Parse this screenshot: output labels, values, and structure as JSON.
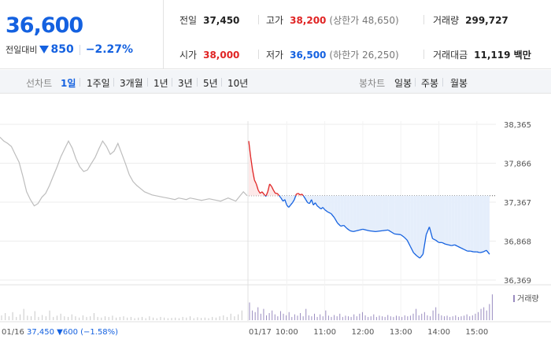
{
  "header": {
    "price": "36,600",
    "change_label": "전일대비",
    "change_amount": "850",
    "change_percent": "−2.27%",
    "stats": {
      "prev_close_label": "전일",
      "prev_close": "37,450",
      "high_label": "고가",
      "high": "38,200",
      "upper_limit": "(상한가 48,650)",
      "volume_label": "거래량",
      "volume": "299,727",
      "open_label": "시가",
      "open": "38,000",
      "low_label": "저가",
      "low": "36,500",
      "lower_limit": "(하한가 26,250)",
      "trade_value_label": "거래대금",
      "trade_value": "11,119 백만"
    }
  },
  "period_bar": {
    "line_chart_label": "선차트",
    "line_periods": [
      "1일",
      "1주일",
      "3개월",
      "1년",
      "3년",
      "5년",
      "10년"
    ],
    "active_period": "1일",
    "candle_chart_label": "봉차트",
    "candle_periods": [
      "일봉",
      "주봉",
      "월봉"
    ]
  },
  "colors": {
    "up": "#e02424",
    "down": "#1461e0",
    "prev_day_line": "#bdbdbd",
    "volume_prev": "#c8c8c8",
    "volume_today": "#9a8cc0"
  },
  "chart_data": {
    "type": "line",
    "y_ticks": [
      "38,365",
      "37,866",
      "37,367",
      "36,868",
      "36,369"
    ],
    "ylim": [
      36369,
      38365
    ],
    "reference_price": 37450,
    "x_labels": [
      "01/17",
      "10:00",
      "11:00",
      "12:00",
      "13:00",
      "14:00",
      "15:00"
    ],
    "prev_day_footer": {
      "date": "01/16",
      "close": "37,450",
      "change": "600",
      "pct": "(−1.58%)"
    },
    "volume_legend": "거래량",
    "series": [
      {
        "name": "01/16",
        "x": [
          "09:00",
          "09:06",
          "09:12",
          "09:18",
          "09:24",
          "09:30",
          "09:36",
          "09:42",
          "09:48",
          "09:54",
          "10:00",
          "10:06",
          "10:12",
          "10:18",
          "10:24",
          "10:30",
          "10:36",
          "10:42",
          "10:48",
          "10:54",
          "11:00",
          "11:06",
          "11:12",
          "11:18",
          "11:24",
          "11:30",
          "11:36",
          "11:42",
          "11:48",
          "11:54",
          "12:00",
          "12:06",
          "12:12",
          "12:18",
          "12:24",
          "12:30",
          "12:36",
          "12:42",
          "12:48",
          "12:54",
          "13:00",
          "13:06",
          "13:12",
          "13:18",
          "13:24",
          "13:30",
          "13:36",
          "13:42",
          "13:48",
          "13:54",
          "14:00",
          "14:06",
          "14:12",
          "14:18",
          "14:24",
          "14:30",
          "14:36",
          "14:42",
          "14:48",
          "14:54",
          "15:00",
          "15:06",
          "15:12",
          "15:18",
          "15:24",
          "15:30"
        ],
        "values": [
          38200,
          38150,
          38120,
          38080,
          37980,
          37880,
          37700,
          37500,
          37400,
          37320,
          37350,
          37430,
          37480,
          37580,
          37700,
          37820,
          37950,
          38050,
          38150,
          38060,
          37920,
          37820,
          37760,
          37780,
          37860,
          37940,
          38050,
          38150,
          38080,
          37980,
          38020,
          38120,
          37990,
          37860,
          37720,
          37630,
          37580,
          37540,
          37500,
          37480,
          37460,
          37450,
          37440,
          37430,
          37420,
          37410,
          37400,
          37420,
          37410,
          37400,
          37420,
          37410,
          37400,
          37390,
          37400,
          37410,
          37400,
          37390,
          37380,
          37400,
          37420,
          37400,
          37380,
          37440,
          37500,
          37450
        ]
      },
      {
        "name": "01/17",
        "x": [
          "09:00",
          "09:03",
          "09:06",
          "09:09",
          "09:12",
          "09:15",
          "09:18",
          "09:21",
          "09:24",
          "09:27",
          "09:30",
          "09:33",
          "09:36",
          "09:39",
          "09:42",
          "09:45",
          "09:48",
          "09:51",
          "09:54",
          "09:57",
          "10:00",
          "10:03",
          "10:06",
          "10:09",
          "10:12",
          "10:15",
          "10:18",
          "10:21",
          "10:24",
          "10:27",
          "10:30",
          "10:33",
          "10:36",
          "10:39",
          "10:42",
          "10:45",
          "10:48",
          "10:51",
          "10:54",
          "10:57",
          "11:00",
          "11:05",
          "11:10",
          "11:15",
          "11:20",
          "11:25",
          "11:30",
          "11:35",
          "11:40",
          "11:45",
          "11:50",
          "11:55",
          "12:00",
          "12:10",
          "12:20",
          "12:30",
          "12:40",
          "12:50",
          "13:00",
          "13:05",
          "13:10",
          "13:15",
          "13:20",
          "13:25",
          "13:30",
          "13:35",
          "13:40",
          "13:45",
          "13:50",
          "13:55",
          "14:00",
          "14:05",
          "14:10",
          "14:15",
          "14:20",
          "14:25",
          "14:30",
          "14:35",
          "14:40",
          "14:45",
          "14:50",
          "14:55",
          "15:00",
          "15:05",
          "15:10",
          "15:15",
          "15:20"
        ],
        "values": [
          38150,
          37950,
          37780,
          37650,
          37600,
          37520,
          37480,
          37500,
          37470,
          37440,
          37500,
          37600,
          37570,
          37520,
          37480,
          37480,
          37450,
          37420,
          37380,
          37400,
          37330,
          37300,
          37330,
          37360,
          37400,
          37470,
          37480,
          37460,
          37470,
          37440,
          37400,
          37360,
          37350,
          37400,
          37330,
          37360,
          37320,
          37300,
          37280,
          37300,
          37270,
          37240,
          37220,
          37170,
          37100,
          37060,
          37070,
          37030,
          37000,
          36990,
          37000,
          37010,
          37020,
          37000,
          36990,
          37000,
          37010,
          36960,
          36950,
          36920,
          36880,
          36800,
          36720,
          36680,
          36650,
          36700,
          36950,
          37050,
          36900,
          36880,
          36850,
          36850,
          36830,
          36820,
          36810,
          36820,
          36800,
          36780,
          36760,
          36740,
          36740,
          36730,
          36730,
          36720,
          36730,
          36750,
          36700
        ]
      }
    ],
    "volume": {
      "name": "거래량",
      "prev_day_relative": [
        0.15,
        0.22,
        0.12,
        0.25,
        0.1,
        0.18,
        0.35,
        0.14,
        0.12,
        0.28,
        0.1,
        0.16,
        0.12,
        0.3,
        0.1,
        0.14,
        0.2,
        0.12,
        0.1,
        0.18,
        0.12,
        0.08,
        0.15,
        0.1,
        0.12,
        0.22,
        0.1,
        0.08,
        0.12,
        0.1,
        0.14,
        0.08,
        0.1,
        0.12,
        0.08,
        0.1,
        0.06,
        0.08,
        0.1,
        0.06,
        0.12,
        0.08,
        0.06,
        0.1,
        0.08,
        0.06,
        0.07,
        0.08,
        0.06,
        0.1,
        0.08,
        0.12,
        0.06,
        0.09,
        0.07,
        0.08,
        0.06,
        0.1,
        0.08,
        0.12,
        0.15,
        0.1,
        0.2,
        0.12,
        0.18,
        0.3
      ],
      "today_relative": [
        0.55,
        0.3,
        0.25,
        0.4,
        0.2,
        0.35,
        0.15,
        0.22,
        0.3,
        0.18,
        0.12,
        0.28,
        0.2,
        0.15,
        0.25,
        0.1,
        0.18,
        0.14,
        0.22,
        0.12,
        0.35,
        0.15,
        0.12,
        0.2,
        0.1,
        0.18,
        0.12,
        0.3,
        0.14,
        0.1,
        0.16,
        0.12,
        0.2,
        0.1,
        0.14,
        0.12,
        0.1,
        0.18,
        0.12,
        0.2,
        0.25,
        0.15,
        0.1,
        0.12,
        0.18,
        0.1,
        0.14,
        0.12,
        0.1,
        0.16,
        0.12,
        0.1,
        0.14,
        0.12,
        0.1,
        0.15,
        0.12,
        0.14,
        0.2,
        0.35,
        0.15,
        0.2,
        0.25,
        0.15,
        0.12,
        0.3,
        0.4,
        0.2,
        0.15,
        0.12,
        0.14,
        0.1,
        0.12,
        0.15,
        0.1,
        0.12,
        0.14,
        0.18,
        0.12,
        0.15,
        0.2,
        0.25,
        0.35,
        0.4,
        0.3,
        0.5,
        0.8
      ]
    }
  }
}
